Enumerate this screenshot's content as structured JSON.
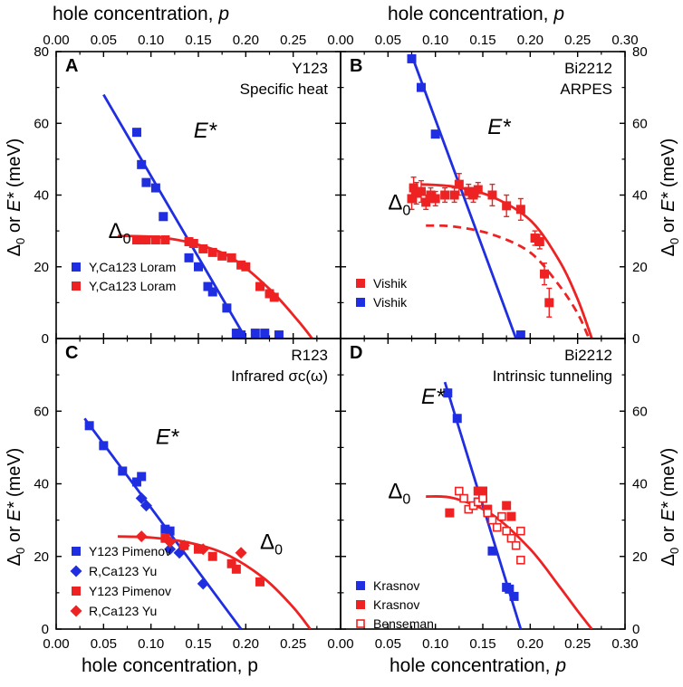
{
  "figure": {
    "x_label_top": "hole concentration,",
    "x_label_top_var": "p",
    "x_label_bottom_left": "hole concentration, p",
    "x_label_bottom_right": "hole concentration,",
    "x_label_bottom_right_var": "p",
    "y_label_delta": "Δ",
    "y_label_sub": "0",
    "y_label_or": "or",
    "y_label_E": "E*",
    "y_label_unit": "(meV)",
    "colors": {
      "blue": "#1f2ee0",
      "red": "#ee2222"
    }
  },
  "chart_data": [
    {
      "panel": "A",
      "type": "scatter",
      "title_lines": [
        "Y123",
        "Specific heat"
      ],
      "xlim": [
        0.0,
        0.3
      ],
      "ylim": [
        0,
        80
      ],
      "xticks": [
        "0.00",
        "0.05",
        "0.10",
        "0.15",
        "0.20",
        "0.25"
      ],
      "yticks": [
        "0",
        "20",
        "40",
        "60",
        "80"
      ],
      "annotations": {
        "E": "E*",
        "delta": "Δ",
        "delta_sub": "0"
      },
      "series": [
        {
          "name": "Y,Ca123 Loram",
          "color": "blue",
          "marker": "square",
          "x": [
            0.085,
            0.09,
            0.095,
            0.105,
            0.113,
            0.14,
            0.15,
            0.16,
            0.165,
            0.18,
            0.19,
            0.195,
            0.21,
            0.22,
            0.235
          ],
          "y": [
            57.5,
            48.5,
            43.5,
            42,
            34,
            22.5,
            20,
            14.5,
            13,
            8.5,
            1.5,
            1,
            1.5,
            1.5,
            1
          ]
        },
        {
          "name": "Y,Ca123 Loram",
          "color": "red",
          "marker": "square",
          "x": [
            0.085,
            0.09,
            0.095,
            0.105,
            0.115,
            0.14,
            0.145,
            0.155,
            0.165,
            0.175,
            0.185,
            0.195,
            0.2,
            0.215,
            0.225,
            0.23
          ],
          "y": [
            27.5,
            27.5,
            27.5,
            27.5,
            27.5,
            27,
            26.5,
            25,
            24,
            23,
            22.5,
            20.5,
            20,
            14.5,
            12.5,
            11.5
          ]
        }
      ],
      "fits": [
        {
          "color": "blue",
          "x": [
            0.05,
            0.2
          ],
          "y": [
            68,
            0
          ]
        },
        {
          "color": "red",
          "x": [
            0.065,
            0.105,
            0.145,
            0.185,
            0.225,
            0.255,
            0.27
          ],
          "y": [
            28.6,
            28.3,
            26.5,
            22.5,
            13.8,
            5,
            0
          ]
        }
      ]
    },
    {
      "panel": "B",
      "type": "scatter",
      "title_lines": [
        "Bi2212",
        "ARPES"
      ],
      "xlim": [
        0.0,
        0.3
      ],
      "ylim": [
        0,
        80
      ],
      "xticks": [
        "0.00",
        "0.05",
        "0.10",
        "0.15",
        "0.20",
        "0.25",
        "0.30"
      ],
      "yticks": [
        "0",
        "20",
        "40",
        "60",
        "80"
      ],
      "annotations": {
        "E": "E*",
        "delta": "Δ",
        "delta_sub": "0"
      },
      "series": [
        {
          "name": "Vishik",
          "color": "red",
          "marker": "square",
          "x": [
            0.075,
            0.077,
            0.08,
            0.085,
            0.09,
            0.095,
            0.1,
            0.11,
            0.12,
            0.125,
            0.135,
            0.14,
            0.145,
            0.16,
            0.175,
            0.19,
            0.205,
            0.21,
            0.215,
            0.22
          ],
          "y": [
            39,
            42,
            40.5,
            41,
            38,
            40,
            39,
            40,
            40,
            43,
            41,
            40,
            41.5,
            40,
            37,
            36,
            28,
            27,
            18,
            10
          ],
          "err": [
            3,
            3,
            3,
            3,
            2,
            2,
            2,
            2,
            2,
            3,
            2,
            2,
            2,
            3,
            3,
            3,
            2,
            2,
            3,
            4
          ]
        },
        {
          "name": "Vishik",
          "color": "blue",
          "marker": "square",
          "x": [
            0.075,
            0.085,
            0.1,
            0.19
          ],
          "y": [
            78,
            70,
            57,
            1
          ]
        }
      ],
      "fits": [
        {
          "color": "blue",
          "x": [
            0.075,
            0.185
          ],
          "y": [
            79,
            0
          ]
        },
        {
          "color": "red",
          "x": [
            0.085,
            0.12,
            0.16,
            0.2,
            0.23,
            0.25,
            0.265
          ],
          "y": [
            43,
            42.3,
            39.5,
            33,
            22,
            11,
            0
          ]
        },
        {
          "color": "red",
          "dashed": true,
          "x": [
            0.09,
            0.12,
            0.16,
            0.2,
            0.23,
            0.25,
            0.262
          ],
          "y": [
            31.5,
            31.2,
            29,
            24,
            15,
            7,
            0
          ]
        }
      ]
    },
    {
      "panel": "C",
      "type": "scatter",
      "title_lines": [
        "R123",
        "Infrared σc(ω)"
      ],
      "xlim": [
        0.0,
        0.3
      ],
      "ylim": [
        0,
        80
      ],
      "xticks": [
        "0.00",
        "0.05",
        "0.10",
        "0.15",
        "0.20",
        "0.25"
      ],
      "yticks": [
        "0",
        "20",
        "40",
        "60"
      ],
      "annotations": {
        "E": "E*",
        "delta": "Δ",
        "delta_sub": "0"
      },
      "series": [
        {
          "name": "Y123 Pimenov",
          "color": "blue",
          "marker": "square",
          "x": [
            0.035,
            0.05,
            0.07,
            0.085,
            0.09,
            0.115,
            0.12
          ],
          "y": [
            56,
            50.5,
            43.5,
            40.5,
            42,
            27.5,
            27
          ]
        },
        {
          "name": "R,Ca123 Yu",
          "color": "blue",
          "marker": "diamond",
          "x": [
            0.09,
            0.095,
            0.12,
            0.13,
            0.155
          ],
          "y": [
            36,
            34,
            22,
            21,
            12.5
          ]
        },
        {
          "name": "Y123 Pimenov",
          "color": "red",
          "marker": "square",
          "x": [
            0.115,
            0.135,
            0.15,
            0.165,
            0.185,
            0.19,
            0.215
          ],
          "y": [
            25,
            23,
            22,
            20,
            18,
            16.5,
            13
          ]
        },
        {
          "name": "R,Ca123 Yu",
          "color": "red",
          "marker": "diamond",
          "x": [
            0.09,
            0.12,
            0.135,
            0.155,
            0.195
          ],
          "y": [
            25.5,
            24,
            23,
            22,
            21
          ]
        }
      ],
      "fits": [
        {
          "color": "blue",
          "x": [
            0.03,
            0.195
          ],
          "y": [
            58,
            0
          ]
        },
        {
          "color": "red",
          "x": [
            0.065,
            0.1,
            0.14,
            0.18,
            0.22,
            0.25,
            0.268
          ],
          "y": [
            25.5,
            25.2,
            23.8,
            20.5,
            13.8,
            6,
            0
          ]
        }
      ]
    },
    {
      "panel": "D",
      "type": "scatter",
      "title_lines": [
        "Bi2212",
        "Intrinsic tunneling"
      ],
      "xlim": [
        0.0,
        0.3
      ],
      "ylim": [
        0,
        80
      ],
      "xticks": [
        "0.00",
        "0.05",
        "0.10",
        "0.15",
        "0.20",
        "0.25",
        "0.30"
      ],
      "yticks": [
        "0",
        "20",
        "40",
        "60"
      ],
      "annotations": {
        "E": "E*",
        "delta": "Δ",
        "delta_sub": "0"
      },
      "series": [
        {
          "name": "Krasnov",
          "color": "blue",
          "marker": "square",
          "x": [
            0.113,
            0.123,
            0.145,
            0.15,
            0.16,
            0.175,
            0.178,
            0.183
          ],
          "y": [
            65,
            58,
            35,
            36,
            21.5,
            11.5,
            11,
            9
          ]
        },
        {
          "name": "Krasnov",
          "color": "red",
          "marker": "square",
          "x": [
            0.115,
            0.145,
            0.15,
            0.155,
            0.175,
            0.18
          ],
          "y": [
            32,
            38,
            38,
            33,
            34,
            31
          ]
        },
        {
          "name": "Benseman",
          "color": "red",
          "marker": "open-square",
          "x": [
            0.125,
            0.13,
            0.135,
            0.14,
            0.145,
            0.15,
            0.155,
            0.16,
            0.165,
            0.17,
            0.175,
            0.18,
            0.185,
            0.19,
            0.19
          ],
          "y": [
            38,
            36,
            33,
            34,
            35,
            36,
            32,
            30,
            28,
            31,
            27,
            25,
            23,
            27,
            19
          ]
        }
      ],
      "fits": [
        {
          "color": "blue",
          "x": [
            0.11,
            0.19
          ],
          "y": [
            68,
            0
          ]
        },
        {
          "color": "red",
          "x": [
            0.09,
            0.12,
            0.16,
            0.2,
            0.23,
            0.25,
            0.265
          ],
          "y": [
            36.5,
            36,
            31.5,
            22,
            12,
            5,
            0
          ]
        }
      ]
    }
  ]
}
